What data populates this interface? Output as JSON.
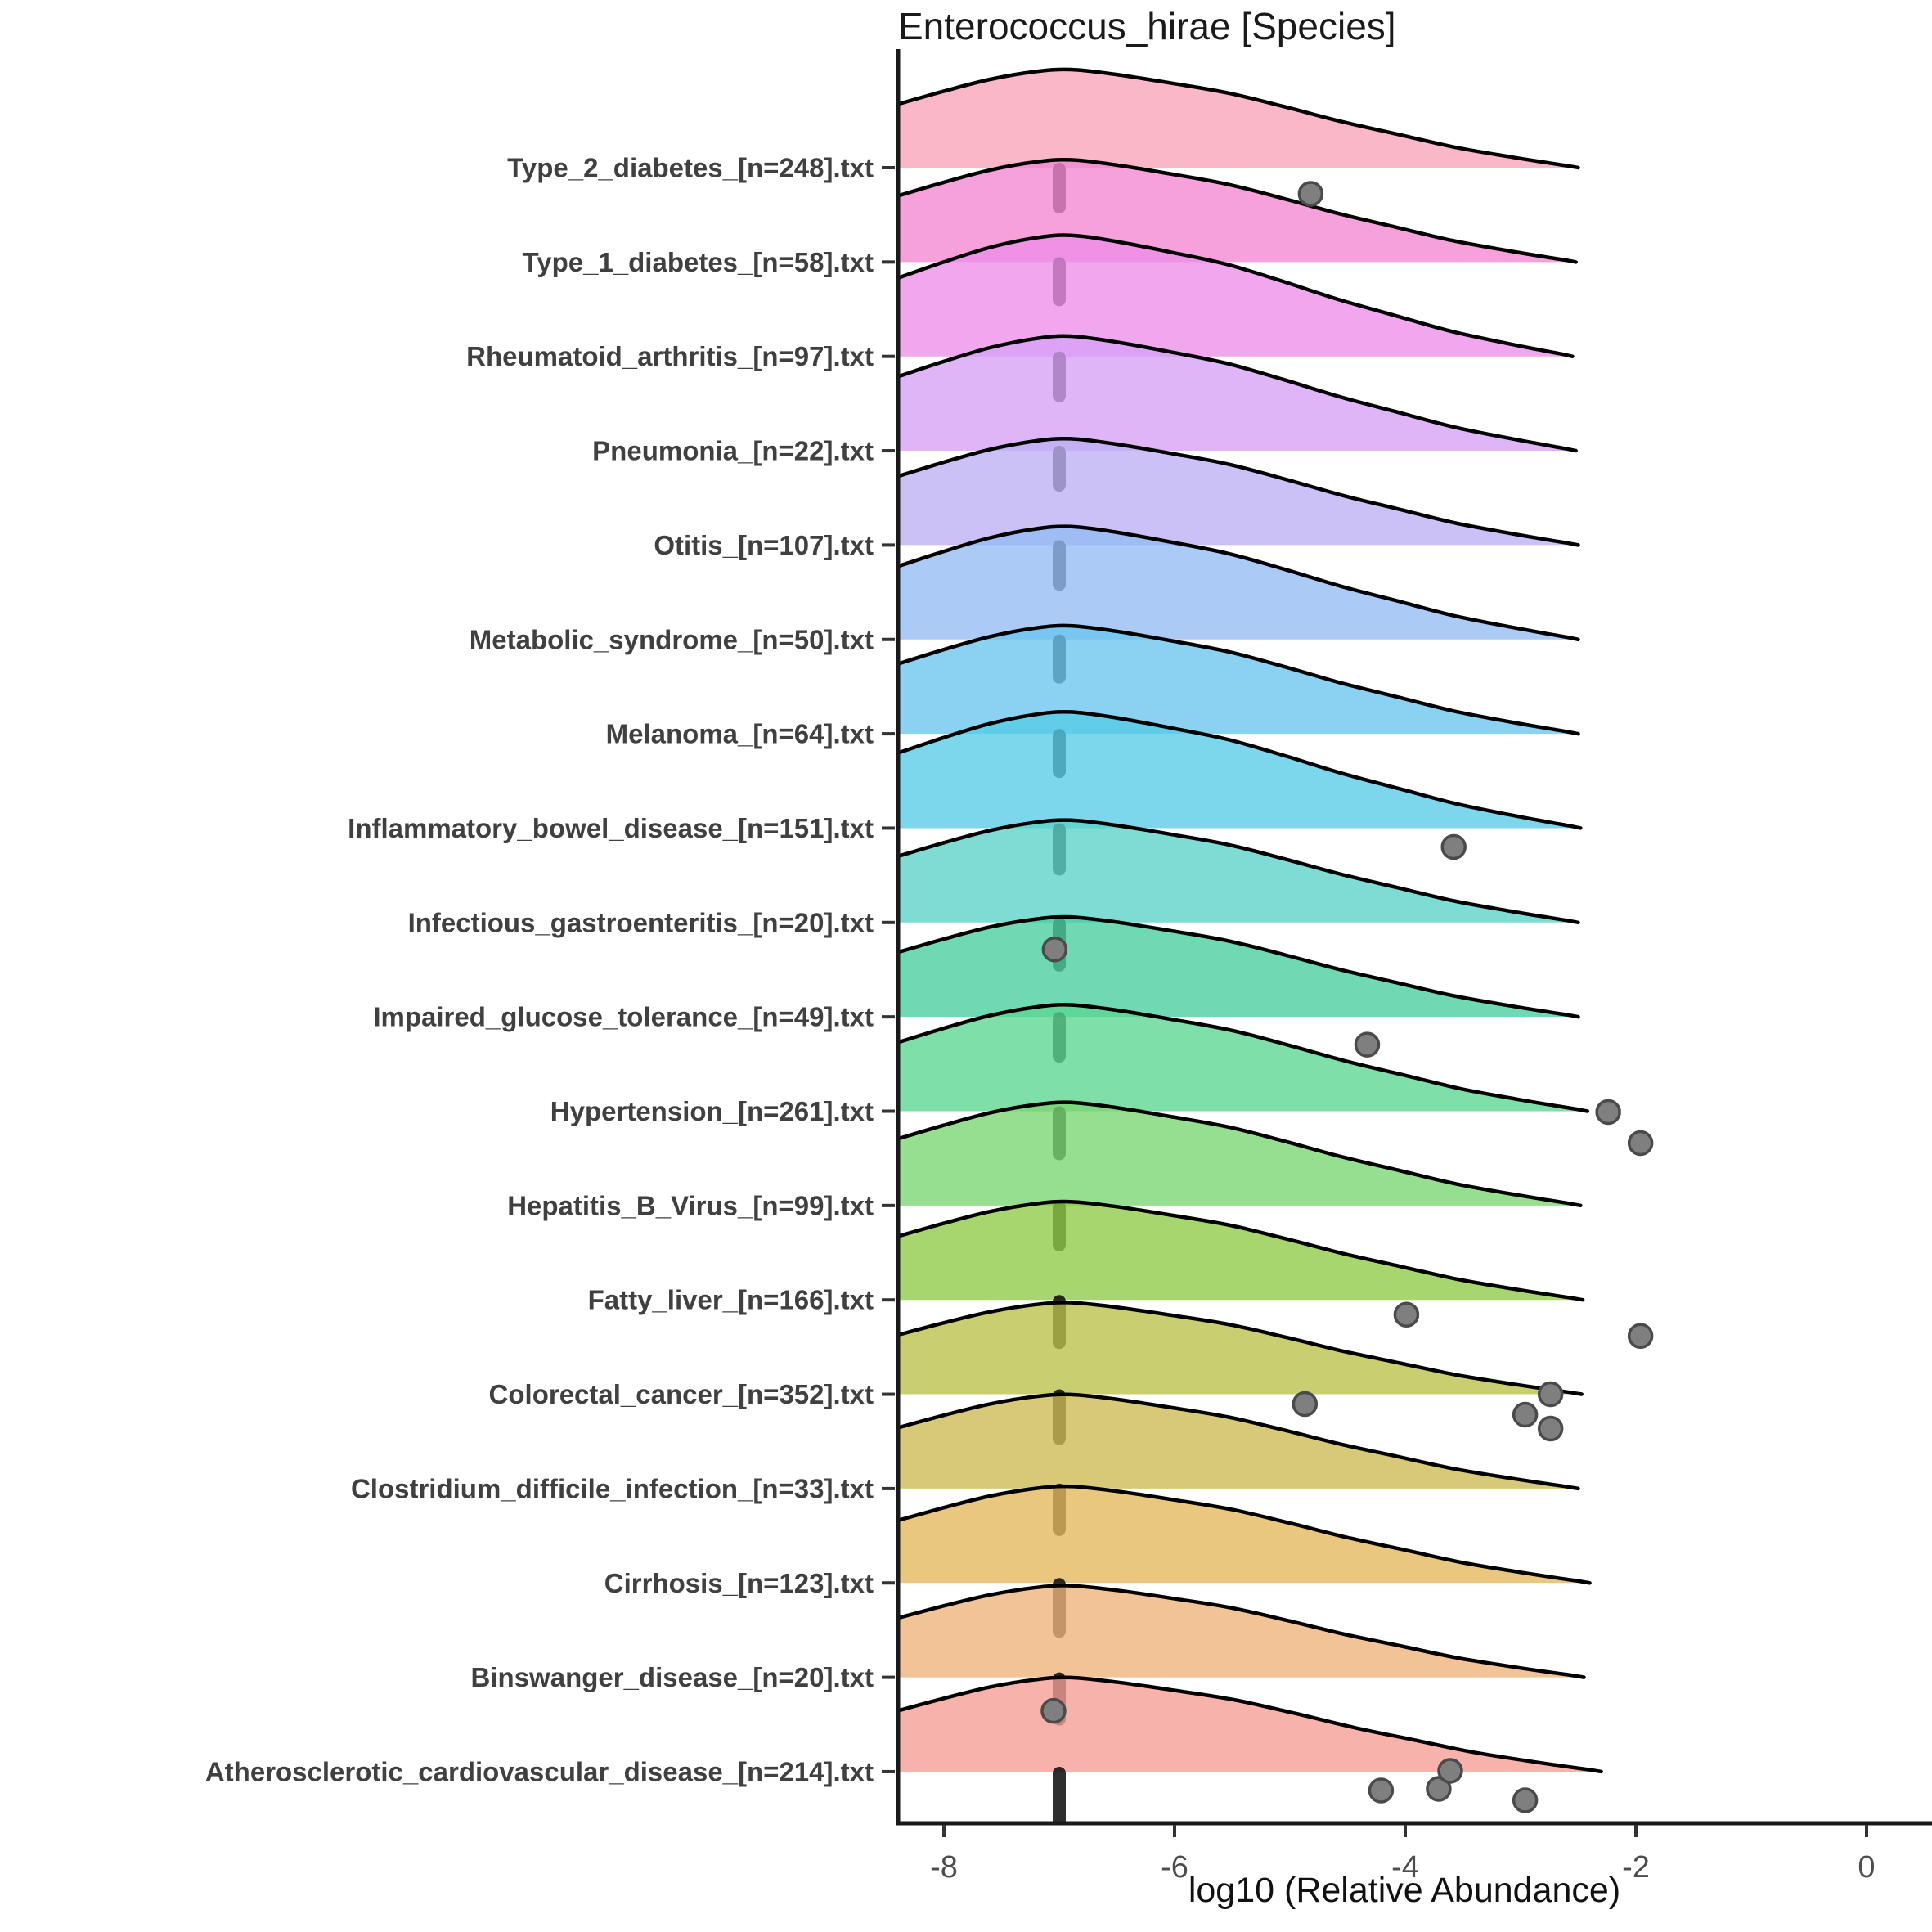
{
  "chart_data": {
    "type": "ridgeline-density",
    "title": "Enterococcus_hirae [Species]",
    "xlabel": "log10 (Relative Abundance)",
    "x_ticks": [
      -8,
      -6,
      -4,
      -2,
      0
    ],
    "x_range": [
      -8.42,
      0.45
    ],
    "legend": "none",
    "grid": "off",
    "rug_position_x": -7,
    "profile": {
      "x": [
        -8.42,
        -8.0,
        -7.6,
        -7.2,
        -6.9,
        -6.5,
        -6.0,
        -5.5,
        -5.0,
        -4.5,
        -4.0,
        -3.5,
        -3.0,
        -2.7,
        -2.5,
        -2.4
      ],
      "h": [
        0.64,
        0.78,
        0.9,
        0.98,
        1.0,
        0.95,
        0.86,
        0.76,
        0.62,
        0.47,
        0.34,
        0.21,
        0.11,
        0.055,
        0.02,
        0.0
      ],
      "peak_x": -6.9,
      "tail_ref": -2.4
    },
    "rows": [
      {
        "label": "Type_2_diabetes_[n=248].txt",
        "n": 248,
        "fill": "#F7A3B9",
        "height": 120,
        "end": -2.5,
        "rug_len": 48,
        "dots": [
          {
            "x": -4.82,
            "dy": 32
          }
        ]
      },
      {
        "label": "Type_1_diabetes_[n=58].txt",
        "n": 58,
        "fill": "#F487D1",
        "height": 125,
        "end": -2.52,
        "rug_len": 46,
        "dots": []
      },
      {
        "label": "Rheumatoid_arthritis_[n=97].txt",
        "n": 97,
        "fill": "#ED8EE9",
        "height": 148,
        "end": -2.55,
        "rug_len": 48,
        "dots": []
      },
      {
        "label": "Pneumonia_[n=22].txt",
        "n": 22,
        "fill": "#D6A0F5",
        "height": 140,
        "end": -2.52,
        "rug_len": 42,
        "dots": []
      },
      {
        "label": "Otitis_[n=107].txt",
        "n": 107,
        "fill": "#BCB0F4",
        "height": 130,
        "end": -2.5,
        "rug_len": 48,
        "dots": []
      },
      {
        "label": "Metabolic_syndrome_[n=50].txt",
        "n": 50,
        "fill": "#93BBF4",
        "height": 138,
        "end": -2.5,
        "rug_len": 46,
        "dots": []
      },
      {
        "label": "Melanoma_[n=64].txt",
        "n": 64,
        "fill": "#6AC5EE",
        "height": 132,
        "end": -2.5,
        "rug_len": 46,
        "dots": []
      },
      {
        "label": "Inflammatory_bowel_disease_[n=151].txt",
        "n": 151,
        "fill": "#57CCE7",
        "height": 142,
        "end": -2.48,
        "rug_len": 50,
        "dots": [
          {
            "x": -3.58,
            "dy": 23
          }
        ]
      },
      {
        "label": "Infectious_gastroenteritis_[n=20].txt",
        "n": 20,
        "fill": "#5BD2C8",
        "height": 125,
        "end": -2.5,
        "rug_len": 52,
        "dots": [
          {
            "x": -7.04,
            "dy": 33
          }
        ]
      },
      {
        "label": "Impaired_glucose_tolerance_[n=49].txt",
        "n": 49,
        "fill": "#47CE9F",
        "height": 122,
        "end": -2.5,
        "rug_len": 48,
        "dots": [
          {
            "x": -4.33,
            "dy": 34
          }
        ]
      },
      {
        "label": "Hypertension_[n=261].txt",
        "n": 261,
        "fill": "#5AD690",
        "height": 130,
        "end": -2.42,
        "rug_len": 52,
        "dots": [
          {
            "x": -2.24,
            "dy": 1
          },
          {
            "x": -1.96,
            "dy": 39
          }
        ]
      },
      {
        "label": "Hepatitis_B_Virus_[n=99].txt",
        "n": 99,
        "fill": "#7AD671",
        "height": 126,
        "end": -2.48,
        "rug_len": 48,
        "dots": []
      },
      {
        "label": "Fatty_liver_[n=166].txt",
        "n": 166,
        "fill": "#90CB45",
        "height": 120,
        "end": -2.46,
        "rug_len": 52,
        "dots": [
          {
            "x": -3.99,
            "dy": 18
          },
          {
            "x": -1.96,
            "dy": 44
          }
        ]
      },
      {
        "label": "Colorectal_cancer_[n=352].txt",
        "n": 352,
        "fill": "#BAC248",
        "height": 112,
        "end": -2.47,
        "rug_len": 54,
        "dots": [
          {
            "x": -4.87,
            "dy": 12
          },
          {
            "x": -2.96,
            "dy": 25
          },
          {
            "x": -2.74,
            "dy": 0
          },
          {
            "x": -2.74,
            "dy": 42
          }
        ]
      },
      {
        "label": "Clostridium_difficile_infection_[n=33].txt",
        "n": 33,
        "fill": "#CDBA53",
        "height": 115,
        "end": -2.5,
        "rug_len": 50,
        "dots": []
      },
      {
        "label": "Cirrhosis_[n=123].txt",
        "n": 123,
        "fill": "#E3B75B",
        "height": 118,
        "end": -2.4,
        "rug_len": 59,
        "dots": []
      },
      {
        "label": "Binswanger_disease_[n=20].txt",
        "n": 20,
        "fill": "#EEB279",
        "height": 112,
        "end": -2.45,
        "rug_len": 51,
        "dots": [
          {
            "x": -7.05,
            "dy": 41
          }
        ]
      },
      {
        "label": "Atherosclerotic_cardiovascular_disease_[n=214].txt",
        "n": 214,
        "fill": "#F59C95",
        "height": 115,
        "end": -2.3,
        "rug_len": 60,
        "dots": [
          {
            "x": -4.21,
            "dy": 23
          },
          {
            "x": -3.71,
            "dy": 21
          },
          {
            "x": -3.61,
            "dy": -1
          },
          {
            "x": -2.96,
            "dy": 35
          }
        ]
      }
    ],
    "style": {
      "outline_color": "#000000",
      "axis_color": "#1a1a1a",
      "rug_color": "#0a0a0a",
      "dot_fill": "#7f7f7f",
      "dot_stroke": "#4a4a4a",
      "fill_opacity": 0.78
    }
  }
}
